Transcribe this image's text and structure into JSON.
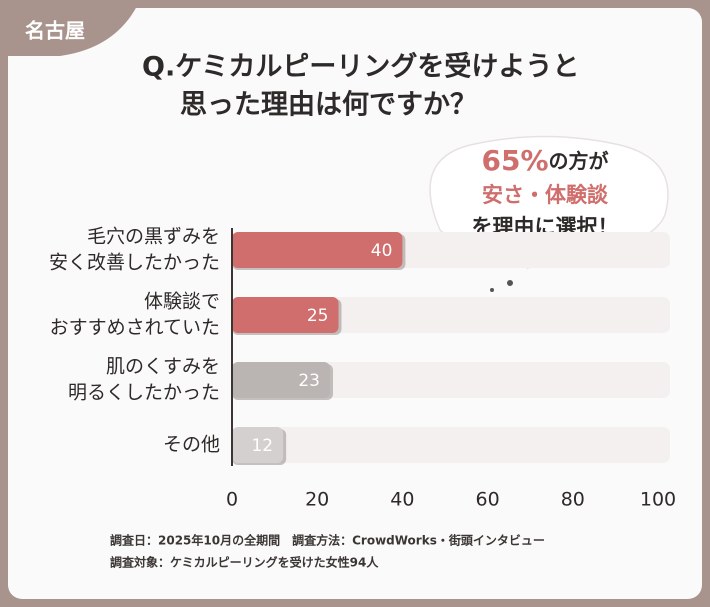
{
  "tag": "名古屋",
  "title_lines": [
    "Q.ケミカルピーリングを受けようと",
    "思った理由は何ですか？"
  ],
  "bubble": {
    "line1_highlight": "65%",
    "line1_text": "の方が",
    "line2": "安さ・体験談",
    "line3": "を理由に選択！"
  },
  "chart_data": {
    "type": "bar",
    "orientation": "horizontal",
    "categories": [
      [
        "毛穴の黒ずみを",
        "安く改善したかった"
      ],
      [
        "体験談で",
        "おすすめされていた"
      ],
      [
        "肌のくすみを",
        "明るくしたかった"
      ],
      [
        "その他"
      ]
    ],
    "values": [
      40,
      25,
      23,
      12
    ],
    "colors": [
      "#cf6e6c",
      "#cf6e6c",
      "#bab4b2",
      "#d4d0cf"
    ],
    "track_color": "#f4f0ef",
    "xlim": [
      0,
      100
    ],
    "xticks": [
      0,
      20,
      40,
      60,
      80,
      100
    ]
  },
  "notes": [
    "調査日：2025年10月の全期間　調査方法：CrowdWorks・街頭インタビュー",
    "調査対象：ケミカルピーリングを受けた女性94人"
  ]
}
